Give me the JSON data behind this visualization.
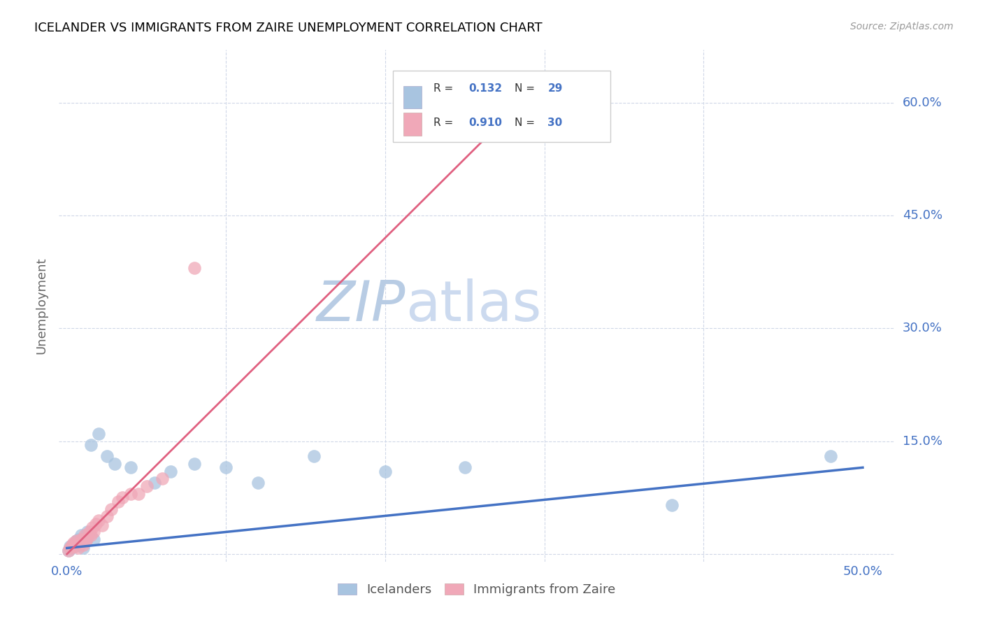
{
  "title": "ICELANDER VS IMMIGRANTS FROM ZAIRE UNEMPLOYMENT CORRELATION CHART",
  "source": "Source: ZipAtlas.com",
  "ylabel": "Unemployment",
  "xlim": [
    -0.005,
    0.52
  ],
  "ylim": [
    -0.01,
    0.67
  ],
  "xticks": [
    0.0,
    0.5
  ],
  "xtick_labels": [
    "0.0%",
    "50.0%"
  ],
  "yticks": [
    0.0,
    0.15,
    0.3,
    0.45,
    0.6
  ],
  "ytick_labels": [
    "",
    "15.0%",
    "30.0%",
    "45.0%",
    "60.0%"
  ],
  "blue_color": "#a8c4e0",
  "pink_color": "#f0a8b8",
  "blue_line_color": "#4472c4",
  "pink_line_color": "#e06080",
  "watermark_zip_color": "#c0cfe8",
  "watermark_atlas_color": "#d0dff5",
  "legend_r_blue": "0.132",
  "legend_n_blue": "29",
  "legend_r_pink": "0.910",
  "legend_n_pink": "30",
  "blue_scatter_x": [
    0.001,
    0.002,
    0.003,
    0.004,
    0.005,
    0.006,
    0.007,
    0.008,
    0.009,
    0.01,
    0.011,
    0.012,
    0.013,
    0.015,
    0.017,
    0.02,
    0.025,
    0.03,
    0.04,
    0.055,
    0.065,
    0.08,
    0.1,
    0.12,
    0.155,
    0.2,
    0.25,
    0.38,
    0.48
  ],
  "blue_scatter_y": [
    0.005,
    0.01,
    0.008,
    0.012,
    0.015,
    0.018,
    0.02,
    0.012,
    0.025,
    0.008,
    0.022,
    0.018,
    0.03,
    0.145,
    0.02,
    0.16,
    0.13,
    0.12,
    0.115,
    0.095,
    0.11,
    0.12,
    0.115,
    0.095,
    0.13,
    0.11,
    0.115,
    0.065,
    0.13
  ],
  "pink_scatter_x": [
    0.001,
    0.002,
    0.003,
    0.004,
    0.005,
    0.006,
    0.007,
    0.008,
    0.009,
    0.01,
    0.011,
    0.012,
    0.013,
    0.014,
    0.015,
    0.016,
    0.017,
    0.018,
    0.02,
    0.022,
    0.025,
    0.028,
    0.032,
    0.035,
    0.04,
    0.045,
    0.05,
    0.06,
    0.08,
    0.28
  ],
  "pink_scatter_y": [
    0.005,
    0.008,
    0.012,
    0.015,
    0.01,
    0.018,
    0.008,
    0.015,
    0.02,
    0.012,
    0.025,
    0.018,
    0.022,
    0.03,
    0.025,
    0.035,
    0.03,
    0.04,
    0.045,
    0.038,
    0.05,
    0.06,
    0.07,
    0.075,
    0.08,
    0.08,
    0.09,
    0.1,
    0.38,
    0.6
  ],
  "blue_trend_x": [
    0.0,
    0.5
  ],
  "blue_trend_y": [
    0.008,
    0.115
  ],
  "pink_trend_x": [
    0.0,
    0.295
  ],
  "pink_trend_y": [
    0.0,
    0.62
  ]
}
